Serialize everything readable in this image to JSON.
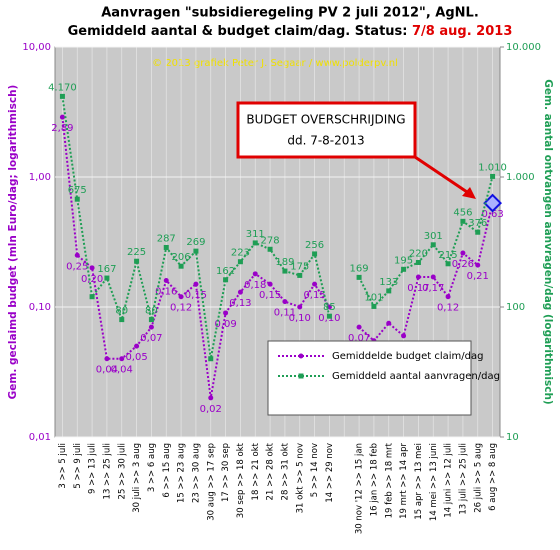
{
  "chart_data": {
    "type": "line",
    "title": "Aanvragen \"subsidieregeling  PV 2 juli 2012\", AgNL.",
    "subtitle": "Gemiddeld aantal & budget claim/dag. Status: ",
    "status": "7/8 aug. 2013",
    "credit": "© 2013 grafiek Peter J. Segaar / www.polderpv.nl",
    "ylabel": "Gem. geclaimd budget (mln Euro/dag; logarithmisch)",
    "y2label": "Gem. aantal ontvangen aanvragen/dag (logarithmisch)",
    "annotation": [
      "BUDGET OVERSCHRIJDING",
      "dd. 7-8-2013"
    ],
    "log": true,
    "grid": true,
    "legend": "lower right",
    "categories": [
      "3 >> 5 juli",
      "5 >> 9 juli",
      "9 >> 13 juli",
      "13 >> 25 juli",
      "25 >> 30 juli",
      "30 juli >> 3 aug",
      "3 >> 6 aug",
      "6 >> 15 aug",
      "15 >> 23 aug",
      "23 >> 30 aug",
      "30 aug >> 17 sep",
      "17 >> 30 sep",
      "30 sep >> 18 okt",
      "18 >> 21 okt",
      "21 >> 28 okt",
      "28 >> 31 okt",
      "31 okt >> 5 nov",
      "5 >> 14 nov",
      "14 >> 29 nov",
      null,
      "30 nov '12 >> 15 jan",
      "16 jan >> 18 feb",
      "19 feb >> 18 mrt",
      "19 mrt >> 14 apr",
      "15 apr >> 13 mei",
      "14 mei >> 13 juni",
      "14 juni >> 12 juli",
      "13 juli >> 25 juli",
      "26 juli >> 5 aug",
      "6 aug >> 8 aug"
    ],
    "ylim": [
      0.01,
      10
    ],
    "yticks": [
      {
        "value": 0.01,
        "label": "0,01"
      },
      {
        "value": 0.1,
        "label": "0,10"
      },
      {
        "value": 1,
        "label": "1,00"
      },
      {
        "value": 10,
        "label": "10,00"
      }
    ],
    "y2lim": [
      10,
      10000
    ],
    "y2ticks": [
      10,
      100,
      {
        "value": 1000,
        "label": "1.000"
      },
      {
        "value": 10000,
        "label": "10.000"
      }
    ],
    "series": [
      {
        "name": "Gemiddelde budget claim/dag",
        "color": "#9a00c8",
        "values": [
          2.89,
          0.25,
          0.2,
          0.04,
          0.04,
          0.05,
          0.07,
          0.16,
          0.12,
          0.15,
          0.02,
          0.09,
          0.13,
          0.18,
          0.15,
          0.11,
          0.1,
          0.15,
          0.1,
          null,
          0.07,
          0.055,
          0.075,
          0.06,
          0.17,
          0.17,
          0.12,
          0.26,
          0.21,
          0.63
        ],
        "value_labels": [
          "2,89",
          "0,25",
          "0,20",
          "0,04",
          "0,04",
          "0,05",
          "0,07",
          "0,16",
          "0,12",
          "0,15",
          "0,02",
          "0,09",
          "0,13",
          "0,18",
          "0,15",
          "0,11",
          "0,10",
          "0,15",
          "0,10",
          null,
          "0,07",
          "0,06",
          null,
          "0,06",
          "0,17",
          "0,17",
          "0,12",
          "0,26",
          "0,21",
          "0,63"
        ]
      },
      {
        "name": "Gemiddeld aantal aanvragen/dag",
        "color": "#1f9e55",
        "axis": "y2",
        "values": [
          4170,
          675,
          120,
          167,
          80,
          225,
          80,
          287,
          206,
          269,
          40,
          162,
          223,
          311,
          278,
          189,
          175,
          256,
          85,
          null,
          169,
          101,
          133,
          195,
          220,
          301,
          215,
          456,
          376,
          1010
        ],
        "value_labels": [
          "4.170",
          "675",
          null,
          "167",
          "80",
          "225",
          "80",
          "287",
          "206",
          "269",
          null,
          "162",
          "223",
          "311",
          "278",
          "189",
          "175",
          "256",
          "85",
          null,
          "169",
          "101",
          "133",
          "195",
          "220",
          "301",
          "215",
          "456",
          "376",
          "1.010"
        ]
      }
    ]
  }
}
